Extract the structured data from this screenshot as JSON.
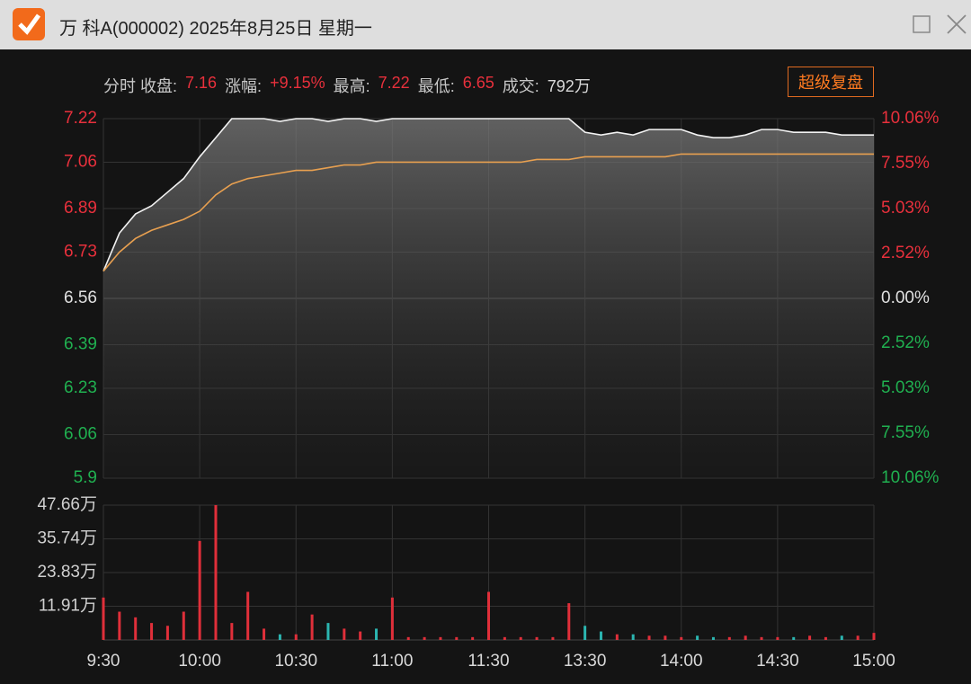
{
  "window": {
    "title": "万  科A(000002) 2025年8月25日 星期一"
  },
  "info": {
    "items": [
      {
        "label": "分时 收盘:",
        "value": "7.16",
        "color": "#e8303c"
      },
      {
        "label": "涨幅:",
        "value": "+9.15%",
        "color": "#e8303c"
      },
      {
        "label": "最高:",
        "value": "7.22",
        "color": "#e8303c"
      },
      {
        "label": "最低:",
        "value": "6.65",
        "color": "#e8303c"
      },
      {
        "label": "成交:",
        "value": "792万",
        "color": "#d8d8d8"
      }
    ],
    "button": "超级复盘"
  },
  "chart_data": [
    {
      "type": "line",
      "ylim": [
        5.9,
        7.22
      ],
      "yticks": [
        7.22,
        7.06,
        6.89,
        6.73,
        6.56,
        6.39,
        6.23,
        6.06,
        5.9
      ],
      "y2lim": [
        -10.06,
        10.06
      ],
      "y2ticks": [
        {
          "value": 10.06,
          "label": "10.06%"
        },
        {
          "value": 7.55,
          "label": "7.55%"
        },
        {
          "value": 5.03,
          "label": "5.03%"
        },
        {
          "value": 2.52,
          "label": "2.52%"
        },
        {
          "value": 0,
          "label": "0.00%"
        },
        {
          "value": -2.52,
          "label": "2.52%"
        },
        {
          "value": -5.03,
          "label": "5.03%"
        },
        {
          "value": -7.55,
          "label": "7.55%"
        },
        {
          "value": -10.06,
          "label": "10.06%"
        }
      ],
      "up_color": "#e8303c",
      "down_color": "#20b050",
      "zero_color": "#e0e0e0",
      "grid": true,
      "series": [
        {
          "color": "#f2f2f2",
          "values": [
            6.66,
            6.8,
            6.87,
            6.9,
            6.95,
            7.0,
            7.08,
            7.15,
            7.22,
            7.22,
            7.22,
            7.21,
            7.22,
            7.22,
            7.21,
            7.22,
            7.22,
            7.21,
            7.22,
            7.22,
            7.22,
            7.22,
            7.22,
            7.22,
            7.22,
            7.22,
            7.22,
            7.22,
            7.22,
            7.22,
            7.17,
            7.16,
            7.17,
            7.16,
            7.18,
            7.18,
            7.18,
            7.16,
            7.15,
            7.15,
            7.16,
            7.18,
            7.18,
            7.17,
            7.17,
            7.17,
            7.16,
            7.16,
            7.16
          ]
        },
        {
          "color": "#e8a050",
          "values": [
            6.66,
            6.73,
            6.78,
            6.81,
            6.83,
            6.85,
            6.88,
            6.94,
            6.98,
            7.0,
            7.01,
            7.02,
            7.03,
            7.03,
            7.04,
            7.05,
            7.05,
            7.06,
            7.06,
            7.06,
            7.06,
            7.06,
            7.06,
            7.06,
            7.06,
            7.06,
            7.06,
            7.07,
            7.07,
            7.07,
            7.08,
            7.08,
            7.08,
            7.08,
            7.08,
            7.08,
            7.09,
            7.09,
            7.09,
            7.09,
            7.09,
            7.09,
            7.09,
            7.09,
            7.09,
            7.09,
            7.09,
            7.09,
            7.09
          ]
        }
      ]
    },
    {
      "type": "bar",
      "categories": [
        "9:30",
        null,
        null,
        null,
        null,
        null,
        "10:00",
        null,
        null,
        null,
        null,
        null,
        "10:30",
        null,
        null,
        null,
        null,
        null,
        "11:00",
        null,
        null,
        null,
        null,
        null,
        "11:30",
        null,
        null,
        null,
        null,
        null,
        "13:30",
        null,
        null,
        null,
        null,
        null,
        "14:00",
        null,
        null,
        null,
        null,
        null,
        "14:30",
        null,
        null,
        null,
        null,
        null,
        "15:00"
      ],
      "values": [
        15,
        10,
        8,
        6,
        5,
        10,
        35,
        47.66,
        6,
        17,
        4,
        2,
        2,
        9,
        6,
        4,
        3,
        4,
        15,
        1,
        1,
        1,
        1,
        1,
        17,
        1,
        1,
        1,
        1,
        13,
        5,
        3,
        2,
        2,
        1.5,
        1.5,
        1,
        1.5,
        1,
        1,
        1.5,
        1,
        1,
        1,
        1.5,
        1,
        1.5,
        1.5,
        2.5
      ],
      "ylim": [
        0,
        47.66
      ],
      "yticks": [
        {
          "value": 47.66,
          "label": "47.66万"
        },
        {
          "value": 35.74,
          "label": "35.74万"
        },
        {
          "value": 23.83,
          "label": "23.83万"
        },
        {
          "value": 11.91,
          "label": "11.91万"
        }
      ],
      "up_color": "#e02f3a",
      "down_color": "#2bb5b0",
      "grid": true
    }
  ]
}
